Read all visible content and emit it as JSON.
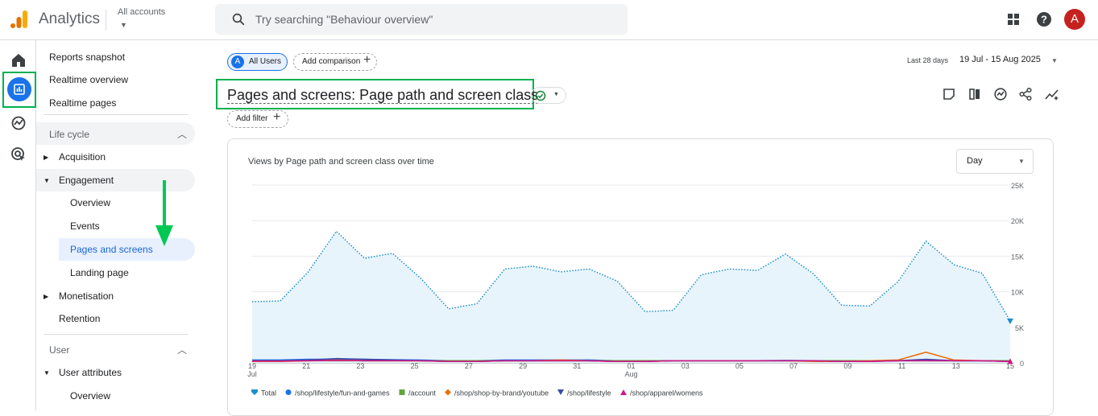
{
  "app": {
    "name": "Analytics",
    "account_label": "All accounts"
  },
  "search": {
    "placeholder": "Try searching \"Behaviour overview\""
  },
  "user": {
    "initial": "A"
  },
  "nav": {
    "reports_snapshot": "Reports snapshot",
    "realtime_overview": "Realtime overview",
    "realtime_pages": "Realtime pages",
    "lifecycle": "Life cycle",
    "acquisition": "Acquisition",
    "engagement": "Engagement",
    "overview": "Overview",
    "events": "Events",
    "pages_and_screens": "Pages and screens",
    "landing_page": "Landing page",
    "monetisation": "Monetisation",
    "retention": "Retention",
    "user": "User",
    "user_attributes": "User attributes",
    "user_overview": "Overview"
  },
  "comparison": {
    "segment_initial": "A",
    "segment": "All Users",
    "add": "Add comparison"
  },
  "date": {
    "label": "Last 28 days",
    "range": "19 Jul - 15 Aug 2025"
  },
  "report": {
    "title": "Pages and screens: Page path and screen class",
    "add_filter": "Add filter"
  },
  "card": {
    "title": "Views by Page path and screen class over time",
    "granularity": "Day"
  },
  "colors": {
    "accent": "#1a73e8",
    "highlight": "#00b050",
    "total": "#1a8fc9",
    "fill": "#e8f4fc"
  },
  "chart_data": {
    "type": "line",
    "x_ticks": [
      {
        "top": "19",
        "bottom": "Jul"
      },
      {
        "top": "21"
      },
      {
        "top": "23"
      },
      {
        "top": "25"
      },
      {
        "top": "27"
      },
      {
        "top": "29"
      },
      {
        "top": "31"
      },
      {
        "top": "01",
        "bottom": "Aug"
      },
      {
        "top": "03"
      },
      {
        "top": "05"
      },
      {
        "top": "07"
      },
      {
        "top": "09"
      },
      {
        "top": "11"
      },
      {
        "top": "13"
      },
      {
        "top": "15"
      }
    ],
    "y_ticks": [
      "0",
      "5K",
      "10K",
      "15K",
      "20K",
      "25K"
    ],
    "ylim": [
      0,
      25000
    ],
    "grid": true,
    "legend_position": "bottom-left",
    "series": [
      {
        "name": "Total",
        "color": "#1a8fc9",
        "style": "dotted-area",
        "values": [
          8600,
          8700,
          12800,
          18500,
          14700,
          15400,
          11900,
          7600,
          8300,
          13200,
          13600,
          12800,
          13200,
          11500,
          7200,
          7400,
          12400,
          13200,
          13000,
          15300,
          12500,
          8100,
          8000,
          11400,
          17100,
          13800,
          12600,
          5900
        ]
      },
      {
        "name": "/shop/lifestyle/fun-and-games",
        "color": "#1a73e8",
        "values": [
          400,
          400,
          500,
          500,
          500,
          450,
          400,
          300,
          300,
          400,
          400,
          400,
          400,
          300,
          300,
          300,
          300,
          300,
          300,
          350,
          300,
          300,
          300,
          300,
          400,
          300,
          300,
          200
        ]
      },
      {
        "name": "/account",
        "color": "#5ea83a",
        "values": [
          300,
          300,
          300,
          300,
          300,
          300,
          300,
          300,
          300,
          300,
          300,
          300,
          300,
          300,
          300,
          300,
          300,
          300,
          300,
          300,
          300,
          300,
          300,
          300,
          300,
          300,
          300,
          300
        ]
      },
      {
        "name": "/shop/shop-by-brand/youtube",
        "color": "#e8710a",
        "values": [
          200,
          200,
          300,
          400,
          300,
          300,
          300,
          200,
          200,
          300,
          300,
          400,
          300,
          200,
          200,
          300,
          300,
          300,
          300,
          300,
          200,
          200,
          300,
          400,
          1500,
          400,
          300,
          200
        ]
      },
      {
        "name": "/shop/lifestyle",
        "color": "#3949ab",
        "values": [
          300,
          300,
          400,
          600,
          500,
          400,
          300,
          200,
          200,
          300,
          300,
          300,
          300,
          200,
          200,
          300,
          300,
          300,
          300,
          300,
          300,
          200,
          200,
          300,
          500,
          300,
          300,
          200
        ]
      },
      {
        "name": "/shop/apparel/womens",
        "color": "#d01884",
        "values": [
          250,
          250,
          300,
          350,
          300,
          300,
          300,
          200,
          200,
          300,
          300,
          300,
          300,
          200,
          200,
          300,
          300,
          300,
          300,
          300,
          300,
          200,
          200,
          300,
          300,
          300,
          300,
          200
        ]
      }
    ]
  }
}
